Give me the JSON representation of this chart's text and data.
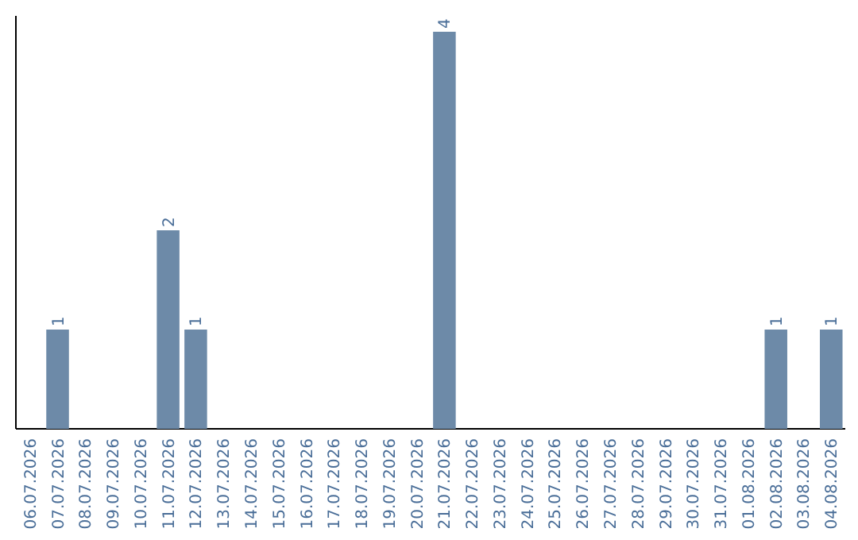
{
  "chart_data": {
    "type": "bar",
    "categories": [
      "06.07.2026",
      "07.07.2026",
      "08.07.2026",
      "09.07.2026",
      "10.07.2026",
      "11.07.2026",
      "12.07.2026",
      "13.07.2026",
      "14.07.2026",
      "15.07.2026",
      "16.07.2026",
      "17.07.2026",
      "18.07.2026",
      "19.07.2026",
      "20.07.2026",
      "21.07.2026",
      "22.07.2026",
      "23.07.2026",
      "24.07.2026",
      "25.07.2026",
      "26.07.2026",
      "27.07.2026",
      "28.07.2026",
      "29.07.2026",
      "30.07.2026",
      "31.07.2026",
      "01.08.2026",
      "02.08.2026",
      "03.08.2026",
      "04.08.2026"
    ],
    "values": [
      0,
      1,
      0,
      0,
      0,
      2,
      1,
      0,
      0,
      0,
      0,
      0,
      0,
      0,
      0,
      4,
      0,
      0,
      0,
      0,
      0,
      0,
      0,
      0,
      0,
      0,
      0,
      1,
      0,
      1
    ],
    "color": "#6d8aa8",
    "value_labels": [
      null,
      "1",
      null,
      null,
      null,
      "2",
      "1",
      null,
      null,
      null,
      null,
      null,
      null,
      null,
      null,
      "4",
      null,
      null,
      null,
      null,
      null,
      null,
      null,
      null,
      null,
      null,
      null,
      "1",
      null,
      "1"
    ]
  }
}
